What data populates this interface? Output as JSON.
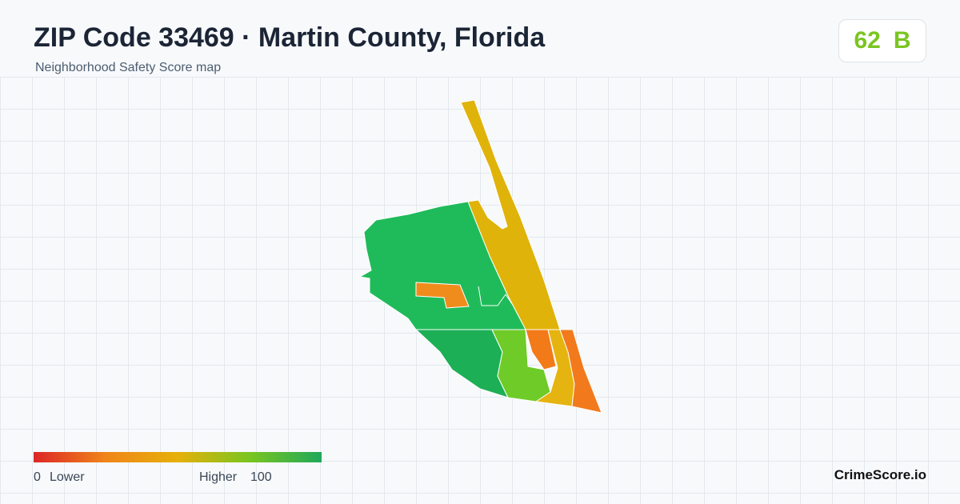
{
  "header": {
    "title": "ZIP Code 33469 · Martin County, Florida",
    "subtitle": "Neighborhood Safety Score map"
  },
  "score": {
    "value": "62",
    "grade": "B"
  },
  "legend": {
    "min": "0",
    "min_label": "Lower",
    "max_label": "Higher",
    "max": "100"
  },
  "brand": "CrimeScore.io"
}
